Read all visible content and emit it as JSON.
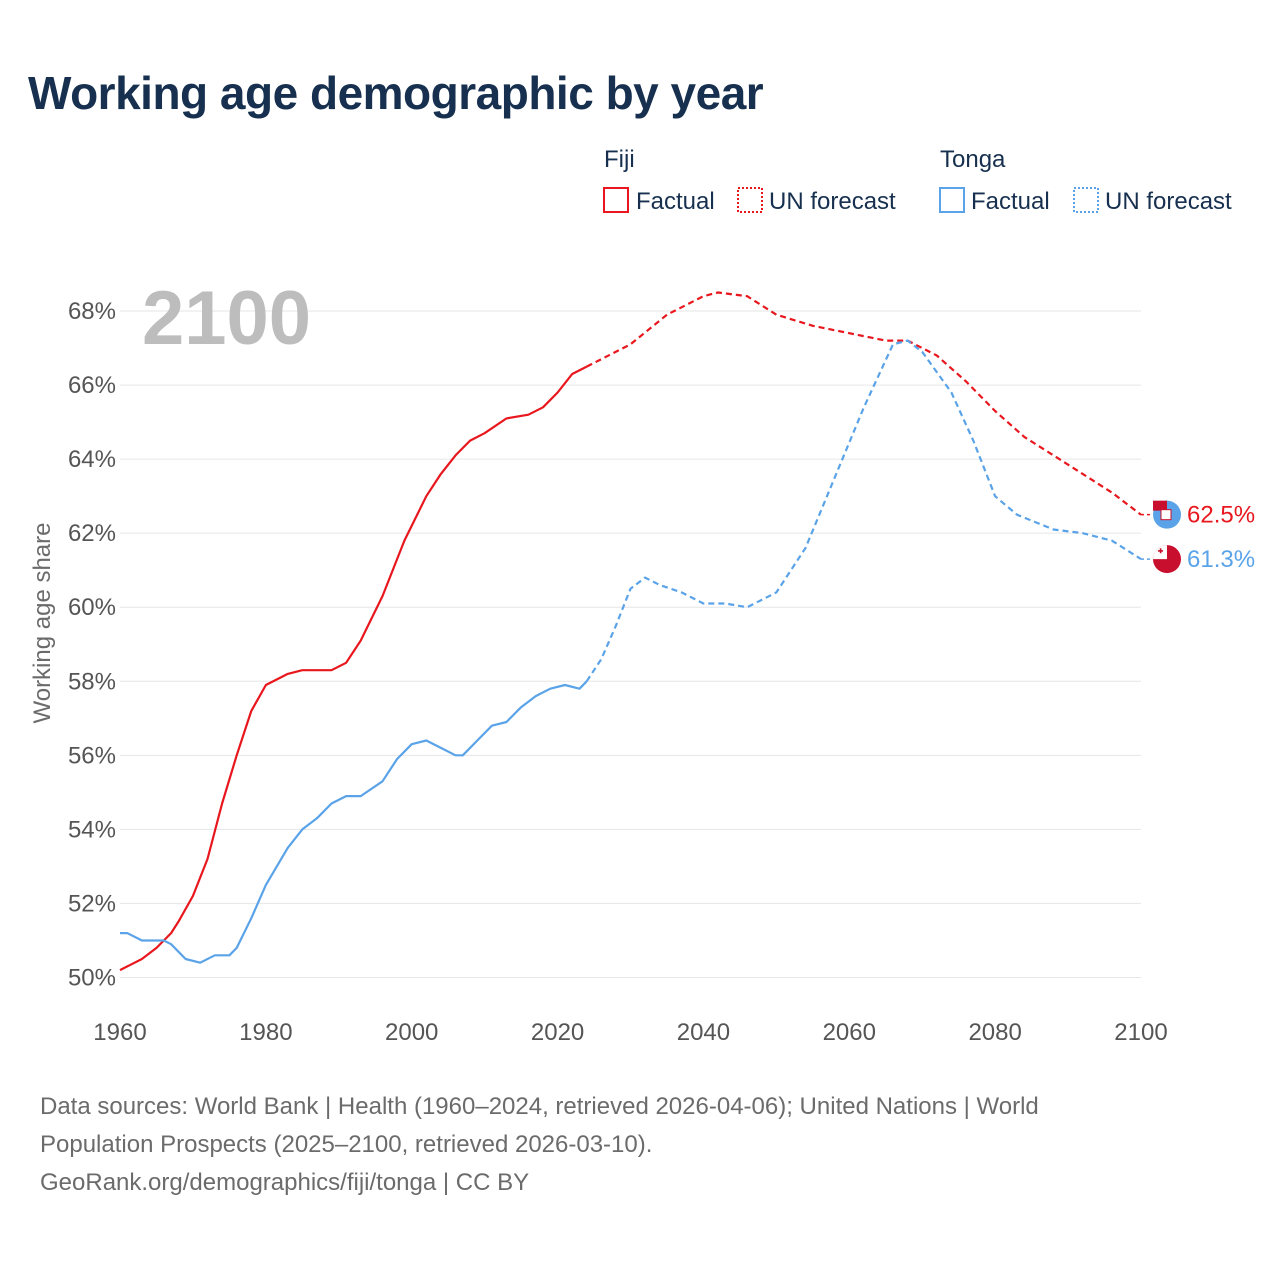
{
  "title": "Working age demographic by year",
  "legend": {
    "groups": [
      {
        "name": "Fiji",
        "color": "#e8171e",
        "factual_label": "Factual",
        "forecast_label": "UN forecast"
      },
      {
        "name": "Tonga",
        "color": "#5aa3e8",
        "factual_label": "Factual",
        "forecast_label": "UN forecast"
      }
    ]
  },
  "year_display": "2100",
  "footer": {
    "line1": "Data sources: World Bank | Health (1960–2024, retrieved 2026-04-06); United Nations | World",
    "line2": "Population Prospects (2025–2100, retrieved 2026-03-10).",
    "line3": "GeoRank.org/demographics/fiji/tonga | CC BY"
  },
  "chart_data": {
    "type": "line",
    "title": "Working age demographic by year",
    "xlabel": "",
    "ylabel": "Working age share",
    "xlim": [
      1960,
      2100
    ],
    "ylim": [
      49.5,
      69
    ],
    "x_ticks": [
      1960,
      1980,
      2000,
      2020,
      2040,
      2060,
      2080,
      2100
    ],
    "y_ticks": [
      50,
      52,
      54,
      56,
      58,
      60,
      62,
      64,
      66,
      68
    ],
    "y_tick_suffix": "%",
    "grid": true,
    "factual_range": [
      1960,
      2024
    ],
    "forecast_range": [
      2024,
      2100
    ],
    "series": [
      {
        "name": "Fiji",
        "color": "#e8171e",
        "end_label": "62.5%",
        "points": [
          [
            1960,
            50.2
          ],
          [
            1963,
            50.5
          ],
          [
            1965,
            50.8
          ],
          [
            1967,
            51.2
          ],
          [
            1968,
            51.5
          ],
          [
            1970,
            52.2
          ],
          [
            1972,
            53.2
          ],
          [
            1974,
            54.7
          ],
          [
            1976,
            56.0
          ],
          [
            1978,
            57.2
          ],
          [
            1980,
            57.9
          ],
          [
            1983,
            58.2
          ],
          [
            1985,
            58.3
          ],
          [
            1989,
            58.3
          ],
          [
            1991,
            58.5
          ],
          [
            1993,
            59.1
          ],
          [
            1996,
            60.3
          ],
          [
            1999,
            61.8
          ],
          [
            2002,
            63.0
          ],
          [
            2004,
            63.6
          ],
          [
            2006,
            64.1
          ],
          [
            2008,
            64.5
          ],
          [
            2010,
            64.7
          ],
          [
            2013,
            65.1
          ],
          [
            2016,
            65.2
          ],
          [
            2018,
            65.4
          ],
          [
            2020,
            65.8
          ],
          [
            2022,
            66.3
          ],
          [
            2024,
            66.5
          ],
          [
            2026,
            66.7
          ],
          [
            2030,
            67.1
          ],
          [
            2035,
            67.9
          ],
          [
            2040,
            68.4
          ],
          [
            2042,
            68.5
          ],
          [
            2046,
            68.4
          ],
          [
            2050,
            67.9
          ],
          [
            2055,
            67.6
          ],
          [
            2060,
            67.4
          ],
          [
            2065,
            67.2
          ],
          [
            2068,
            67.2
          ],
          [
            2072,
            66.8
          ],
          [
            2076,
            66.1
          ],
          [
            2080,
            65.3
          ],
          [
            2084,
            64.6
          ],
          [
            2088,
            64.1
          ],
          [
            2092,
            63.6
          ],
          [
            2096,
            63.1
          ],
          [
            2100,
            62.5
          ]
        ]
      },
      {
        "name": "Tonga",
        "color": "#5aa3e8",
        "end_label": "61.3%",
        "points": [
          [
            1960,
            51.2
          ],
          [
            1961,
            51.2
          ],
          [
            1963,
            51.0
          ],
          [
            1966,
            51.0
          ],
          [
            1967,
            50.9
          ],
          [
            1969,
            50.5
          ],
          [
            1971,
            50.4
          ],
          [
            1973,
            50.6
          ],
          [
            1975,
            50.6
          ],
          [
            1976,
            50.8
          ],
          [
            1978,
            51.6
          ],
          [
            1980,
            52.5
          ],
          [
            1983,
            53.5
          ],
          [
            1985,
            54.0
          ],
          [
            1987,
            54.3
          ],
          [
            1989,
            54.7
          ],
          [
            1991,
            54.9
          ],
          [
            1993,
            54.9
          ],
          [
            1996,
            55.3
          ],
          [
            1998,
            55.9
          ],
          [
            2000,
            56.3
          ],
          [
            2002,
            56.4
          ],
          [
            2004,
            56.2
          ],
          [
            2006,
            56.0
          ],
          [
            2007,
            56.0
          ],
          [
            2009,
            56.4
          ],
          [
            2011,
            56.8
          ],
          [
            2013,
            56.9
          ],
          [
            2015,
            57.3
          ],
          [
            2017,
            57.6
          ],
          [
            2019,
            57.8
          ],
          [
            2021,
            57.9
          ],
          [
            2023,
            57.8
          ],
          [
            2024,
            58.0
          ],
          [
            2026,
            58.6
          ],
          [
            2028,
            59.5
          ],
          [
            2030,
            60.5
          ],
          [
            2032,
            60.8
          ],
          [
            2034,
            60.6
          ],
          [
            2037,
            60.4
          ],
          [
            2040,
            60.1
          ],
          [
            2043,
            60.1
          ],
          [
            2046,
            60.0
          ],
          [
            2050,
            60.4
          ],
          [
            2054,
            61.6
          ],
          [
            2058,
            63.5
          ],
          [
            2062,
            65.4
          ],
          [
            2066,
            67.1
          ],
          [
            2068,
            67.2
          ],
          [
            2070,
            66.9
          ],
          [
            2074,
            65.8
          ],
          [
            2077,
            64.5
          ],
          [
            2080,
            63.0
          ],
          [
            2083,
            62.5
          ],
          [
            2088,
            62.1
          ],
          [
            2092,
            62.0
          ],
          [
            2096,
            61.8
          ],
          [
            2100,
            61.3
          ]
        ]
      }
    ]
  }
}
